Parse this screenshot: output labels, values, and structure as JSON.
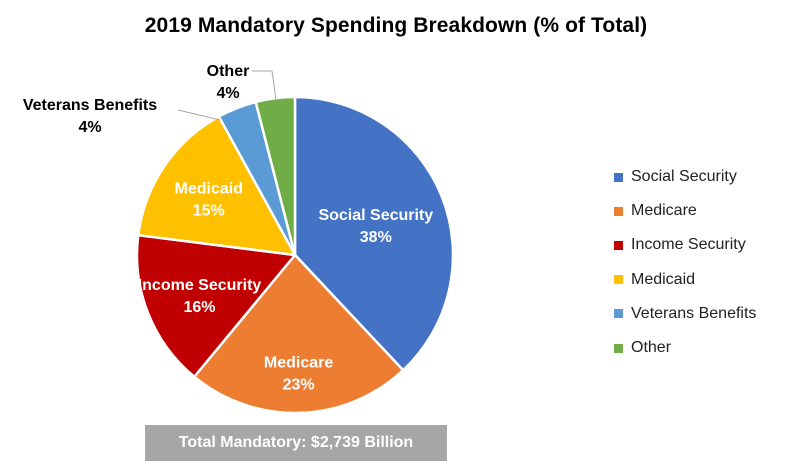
{
  "chart_data": {
    "type": "pie",
    "title": "2019 Mandatory Spending Breakdown (% of Total)",
    "slices": [
      {
        "label": "Social Security",
        "value": 38,
        "value_label": "38%",
        "color": "#4472c4",
        "label_color": "#ffffff"
      },
      {
        "label": "Medicare",
        "value": 23,
        "value_label": "23%",
        "color": "#ed7d31",
        "label_color": "#ffffff"
      },
      {
        "label": "Income Security",
        "value": 16,
        "value_label": "16%",
        "color": "#c00000",
        "label_color": "#ffffff"
      },
      {
        "label": "Medicaid",
        "value": 15,
        "value_label": "15%",
        "color": "#ffc000",
        "label_color": "#ffffff"
      },
      {
        "label": "Veterans Benefits",
        "value": 4,
        "value_label": "4%",
        "color": "#5b9bd5",
        "label_color": "#000000"
      },
      {
        "label": "Other",
        "value": 4,
        "value_label": "4%",
        "color": "#70ad47",
        "label_color": "#000000"
      }
    ],
    "start": "12 o'clock, clockwise",
    "legend_position": "right",
    "footer": "Total Mandatory: $2,739 Billion"
  }
}
